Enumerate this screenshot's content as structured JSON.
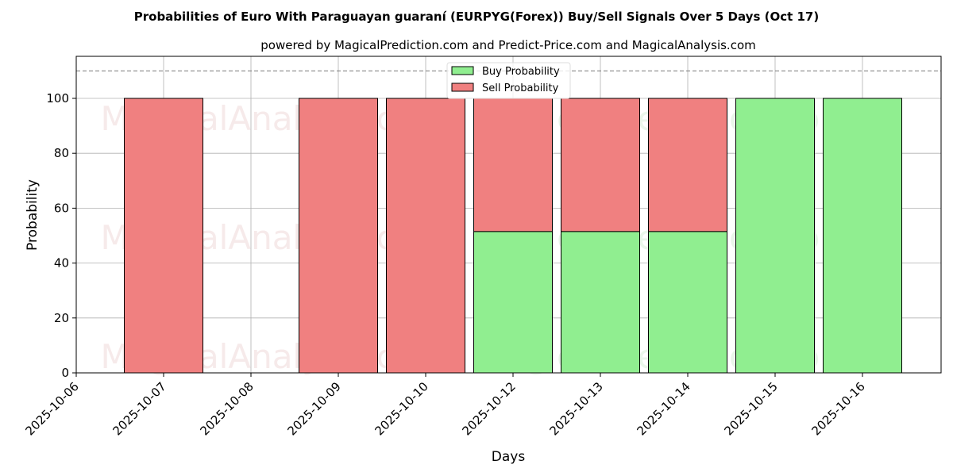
{
  "chart_data": {
    "type": "bar",
    "stacked": true,
    "title": "Probabilities of Euro With Paraguayan guaraní (EURPYG(Forex)) Buy/Sell Signals Over 5 Days (Oct 17)",
    "subtitle": "powered by MagicalPrediction.com and Predict-Price.com and MagicalAnalysis.com",
    "xlabel": "Days",
    "ylabel": "Probability",
    "ylim": [
      0,
      115
    ],
    "yticks": [
      0,
      20,
      40,
      60,
      80,
      100
    ],
    "xtick_labels": [
      "2025-10-06",
      "2025-10-07",
      "2025-10-08",
      "2025-10-09",
      "2025-10-10",
      "2025-10-12",
      "2025-10-13",
      "2025-10-14",
      "2025-10-15",
      "2025-10-16"
    ],
    "categories": [
      "2025-10-07",
      "2025-10-08",
      "2025-10-09",
      "2025-10-10",
      "2025-10-12",
      "2025-10-13",
      "2025-10-14",
      "2025-10-15",
      "2025-10-16"
    ],
    "series": [
      {
        "name": "Buy Probability",
        "color": "#90ee90",
        "values": [
          0,
          0,
          0,
          0,
          51.5,
          51.5,
          51.5,
          100,
          100
        ]
      },
      {
        "name": "Sell Probability",
        "color": "#f08080",
        "values": [
          100,
          0,
          100,
          100,
          48.5,
          48.5,
          48.5,
          0,
          0
        ]
      }
    ],
    "reference_line": 110,
    "grid": true,
    "legend_position": "top-center",
    "watermarks": [
      "MagicalAnalysis.com",
      "MagicalPrediction.com"
    ]
  }
}
